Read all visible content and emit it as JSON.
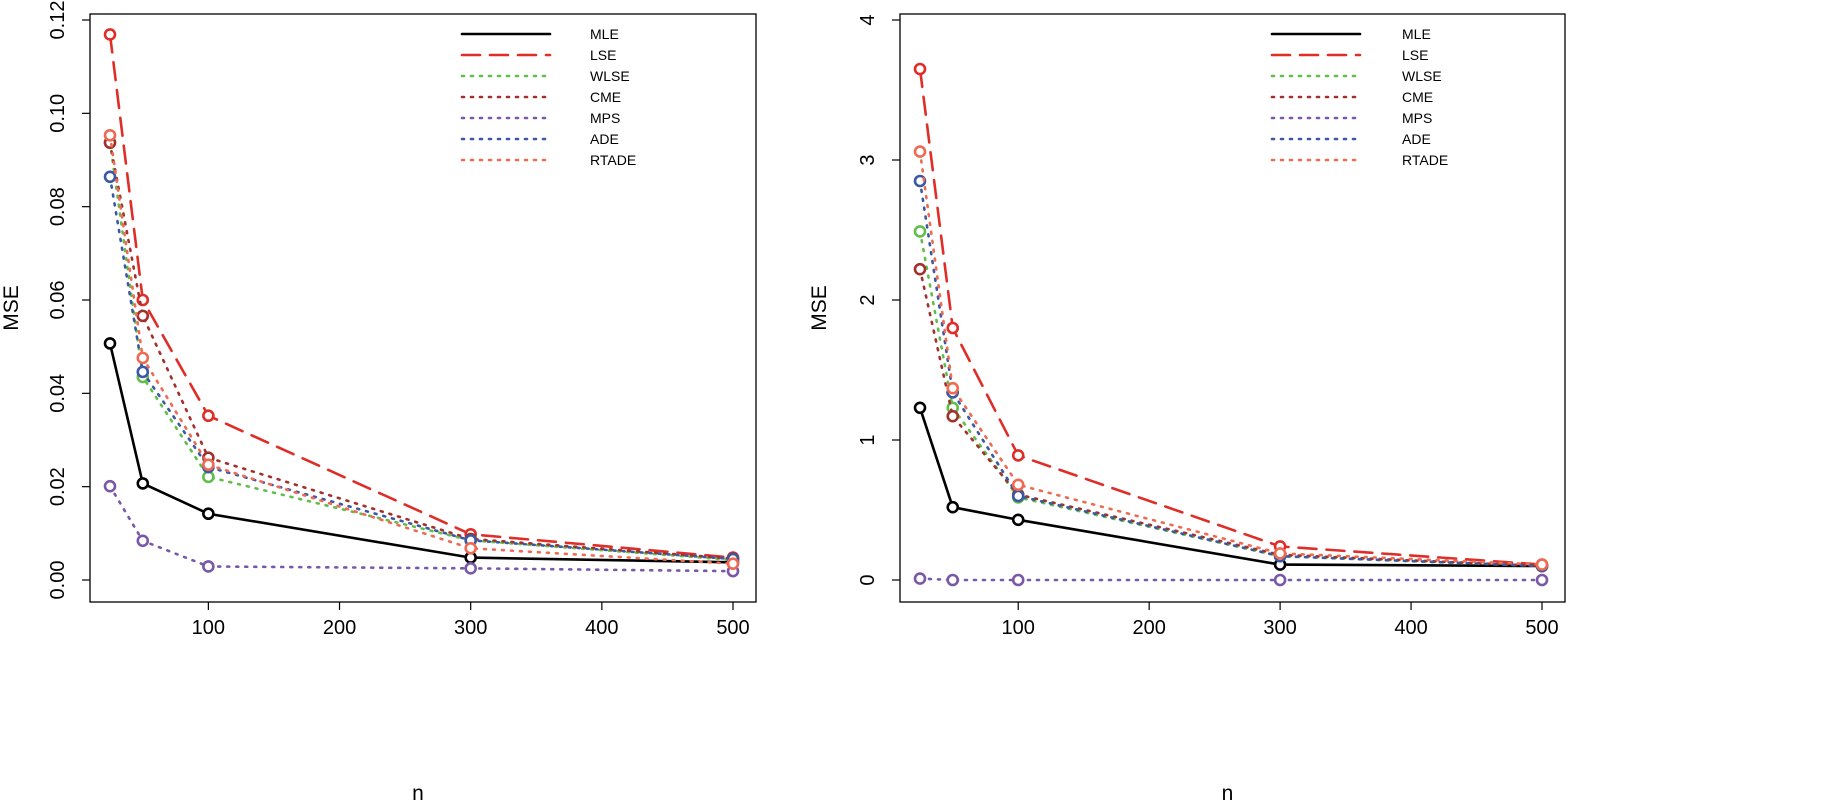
{
  "chart_data": [
    {
      "type": "line",
      "xlabel": "n",
      "ylabel": "MSE",
      "x": [
        25,
        50,
        100,
        300,
        500
      ],
      "xticks": [
        100,
        200,
        300,
        400,
        500
      ],
      "xlim": [
        10,
        510
      ],
      "yticks": [
        "0.00",
        "0.02",
        "0.04",
        "0.06",
        "0.08",
        "0.10",
        "0.12"
      ],
      "ylim": [
        0,
        0.12
      ],
      "legend": "top-right",
      "series": [
        {
          "name": "MLE",
          "color": "#000000",
          "style": "solid",
          "values": [
            0.0507,
            0.0207,
            0.0142,
            0.0048,
            0.0038
          ]
        },
        {
          "name": "LSE",
          "color": "#DF2E28",
          "style": "dashed",
          "values": [
            0.1169,
            0.06,
            0.0352,
            0.0098,
            0.0048
          ]
        },
        {
          "name": "WLSE",
          "color": "#61BE4A",
          "style": "dotted",
          "values": [
            0.0938,
            0.0435,
            0.0221,
            0.0085,
            0.0043
          ]
        },
        {
          "name": "CME",
          "color": "#A2302C",
          "style": "dotted",
          "values": [
            0.0937,
            0.0566,
            0.0262,
            0.0088,
            0.0046
          ]
        },
        {
          "name": "MPS",
          "color": "#7A58A8",
          "style": "dotted",
          "values": [
            0.0201,
            0.0084,
            0.0029,
            0.0025,
            0.0019
          ]
        },
        {
          "name": "ADE",
          "color": "#3B58A3",
          "style": "dotted",
          "values": [
            0.0864,
            0.0446,
            0.0242,
            0.0085,
            0.0045
          ]
        },
        {
          "name": "RTADE",
          "color": "#EE6A52",
          "style": "dotted",
          "values": [
            0.0953,
            0.0476,
            0.0247,
            0.0068,
            0.0035
          ]
        }
      ]
    },
    {
      "type": "line",
      "xlabel": "n",
      "ylabel": "MSE",
      "x": [
        25,
        50,
        100,
        300,
        500
      ],
      "xticks": [
        100,
        200,
        300,
        400,
        500
      ],
      "xlim": [
        10,
        510
      ],
      "yticks": [
        "0",
        "1",
        "2",
        "3",
        "4"
      ],
      "ylim": [
        0,
        4
      ],
      "legend": "top-right",
      "series": [
        {
          "name": "MLE",
          "color": "#000000",
          "style": "solid",
          "values": [
            1.23,
            0.52,
            0.43,
            0.11,
            0.1
          ]
        },
        {
          "name": "LSE",
          "color": "#DF2E28",
          "style": "dashed",
          "values": [
            3.65,
            1.8,
            0.89,
            0.24,
            0.11
          ]
        },
        {
          "name": "WLSE",
          "color": "#61BE4A",
          "style": "dotted",
          "values": [
            2.49,
            1.23,
            0.59,
            0.17,
            0.1
          ]
        },
        {
          "name": "CME",
          "color": "#A2302C",
          "style": "dotted",
          "values": [
            2.22,
            1.17,
            0.61,
            0.18,
            0.1
          ]
        },
        {
          "name": "MPS",
          "color": "#7A58A8",
          "style": "dotted",
          "values": [
            0.01,
            0.0,
            0.0,
            0.0,
            0.0
          ]
        },
        {
          "name": "ADE",
          "color": "#3B58A3",
          "style": "dotted",
          "values": [
            2.85,
            1.34,
            0.6,
            0.17,
            0.1
          ]
        },
        {
          "name": "RTADE",
          "color": "#EE6A52",
          "style": "dotted",
          "values": [
            3.06,
            1.37,
            0.68,
            0.19,
            0.11
          ]
        }
      ]
    }
  ]
}
